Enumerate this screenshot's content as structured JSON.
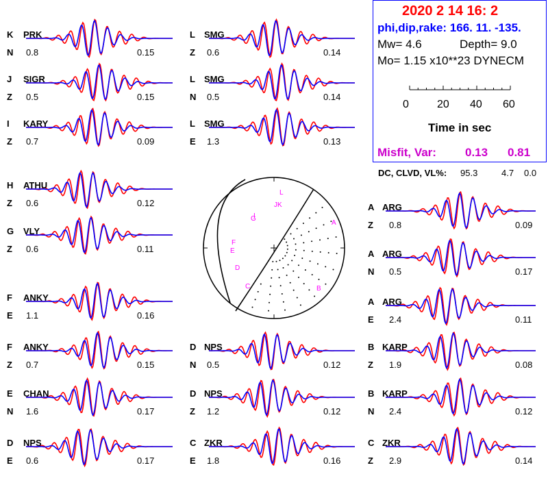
{
  "header": {
    "date": "2020  2 14    16: 2",
    "angles": "phi,dip,rake: 166. 11. -135.",
    "mw": "Mw=  4.6",
    "depth": "Depth=      9.0",
    "mo": "Mo=  1.15 x10**23 DYNECM",
    "time_axis_title": "Time  in sec",
    "time_ticks": [
      "0",
      "20",
      "40",
      "60"
    ],
    "misfit_label": "Misfit, Var:",
    "misfit_value": "0.13",
    "var_value": "0.81",
    "dc_line": "DC, CLVD, VL%:",
    "dc": "95.3",
    "clvd": "4.7",
    "vl": "0.0"
  },
  "colors": {
    "observed": "#ff0000",
    "synthetic": "#0000ff",
    "station_marker": "#ff00ff",
    "date": "#ff0000",
    "angles": "#0000ff",
    "misfit": "#cc00cc"
  },
  "traces": [
    {
      "label": "K",
      "station": "PRK",
      "comp": "N",
      "amp": "0.8",
      "mfit": "0.15"
    },
    {
      "label": "J",
      "station": "SIGR",
      "comp": "Z",
      "amp": "0.5",
      "mfit": "0.15"
    },
    {
      "label": "I",
      "station": "KARY",
      "comp": "Z",
      "amp": "0.7",
      "mfit": "0.09"
    },
    {
      "label": "H",
      "station": "ATHU",
      "comp": "Z",
      "amp": "0.6",
      "mfit": "0.12"
    },
    {
      "label": "G",
      "station": "VLY",
      "comp": "Z",
      "amp": "0.6",
      "mfit": "0.11"
    },
    {
      "label": "F",
      "station": "ANKY",
      "comp": "E",
      "amp": "1.1",
      "mfit": "0.16"
    },
    {
      "label": "F",
      "station": "ANKY",
      "comp": "Z",
      "amp": "0.7",
      "mfit": "0.15"
    },
    {
      "label": "E",
      "station": "CHAN",
      "comp": "N",
      "amp": "1.6",
      "mfit": "0.17"
    },
    {
      "label": "D",
      "station": "NPS",
      "comp": "E",
      "amp": "0.6",
      "mfit": "0.17"
    },
    {
      "label": "L",
      "station": "SMG",
      "comp": "Z",
      "amp": "0.6",
      "mfit": "0.14"
    },
    {
      "label": "L",
      "station": "SMG",
      "comp": "N",
      "amp": "0.5",
      "mfit": "0.14"
    },
    {
      "label": "L",
      "station": "SMG",
      "comp": "E",
      "amp": "1.3",
      "mfit": "0.13"
    },
    {
      "label": "D",
      "station": "NPS",
      "comp": "N",
      "amp": "0.5",
      "mfit": "0.12"
    },
    {
      "label": "D",
      "station": "NPS",
      "comp": "Z",
      "amp": "1.2",
      "mfit": "0.12"
    },
    {
      "label": "C",
      "station": "ZKR",
      "comp": "E",
      "amp": "1.8",
      "mfit": "0.16"
    },
    {
      "label": "A",
      "station": "ARG",
      "comp": "Z",
      "amp": "0.8",
      "mfit": "0.09"
    },
    {
      "label": "A",
      "station": "ARG",
      "comp": "N",
      "amp": "0.5",
      "mfit": "0.17"
    },
    {
      "label": "A",
      "station": "ARG",
      "comp": "E",
      "amp": "2.4",
      "mfit": "0.11"
    },
    {
      "label": "B",
      "station": "KARP",
      "comp": "Z",
      "amp": "1.9",
      "mfit": "0.08"
    },
    {
      "label": "B",
      "station": "KARP",
      "comp": "N",
      "amp": "2.4",
      "mfit": "0.12"
    },
    {
      "label": "C",
      "station": "ZKR",
      "comp": "Z",
      "amp": "2.9",
      "mfit": "0.14"
    }
  ],
  "beachball": {
    "stations": [
      "L",
      "JK",
      "I",
      "G",
      "A",
      "F",
      "E",
      "D",
      "C",
      "B"
    ]
  }
}
